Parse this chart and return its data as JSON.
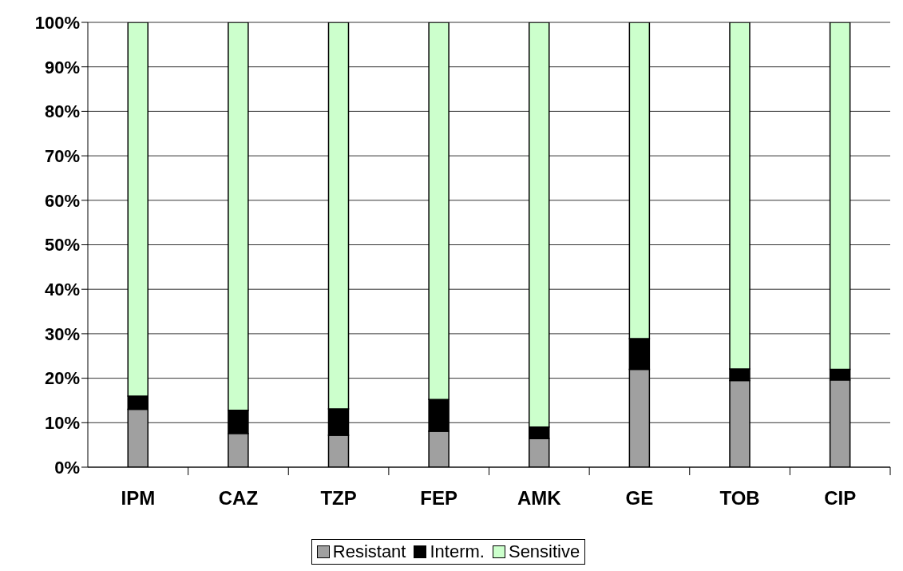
{
  "chart_data": {
    "type": "bar",
    "stacked": true,
    "categories": [
      "IPM",
      "CAZ",
      "TZP",
      "FEP",
      "AMK",
      "GE",
      "TOB",
      "CIP"
    ],
    "series": [
      {
        "name": "Resistant",
        "color": "#a0a0a0",
        "values": [
          13,
          7.6,
          7.2,
          8.1,
          6.4,
          22,
          19.5,
          19.6
        ]
      },
      {
        "name": "Interm.",
        "color": "#000000",
        "values": [
          3,
          5.2,
          5.9,
          7.1,
          2.6,
          6.9,
          2.6,
          2.4
        ]
      },
      {
        "name": "Sensitive",
        "color": "#ccffcc",
        "values": [
          84,
          87.2,
          86.9,
          84.8,
          91,
          71.1,
          77.9,
          78
        ]
      }
    ],
    "ylim": [
      0,
      100
    ],
    "yticks": [
      {
        "value": 0,
        "label": "0%"
      },
      {
        "value": 10,
        "label": "10%"
      },
      {
        "value": 20,
        "label": "20%"
      },
      {
        "value": 30,
        "label": "30%"
      },
      {
        "value": 40,
        "label": "40%"
      },
      {
        "value": 50,
        "label": "50%"
      },
      {
        "value": 60,
        "label": "60%"
      },
      {
        "value": 70,
        "label": "70%"
      },
      {
        "value": 80,
        "label": "80%"
      },
      {
        "value": 90,
        "label": "90%"
      },
      {
        "value": 100,
        "label": "100%"
      }
    ],
    "grid": "y",
    "legend": "bottom"
  }
}
